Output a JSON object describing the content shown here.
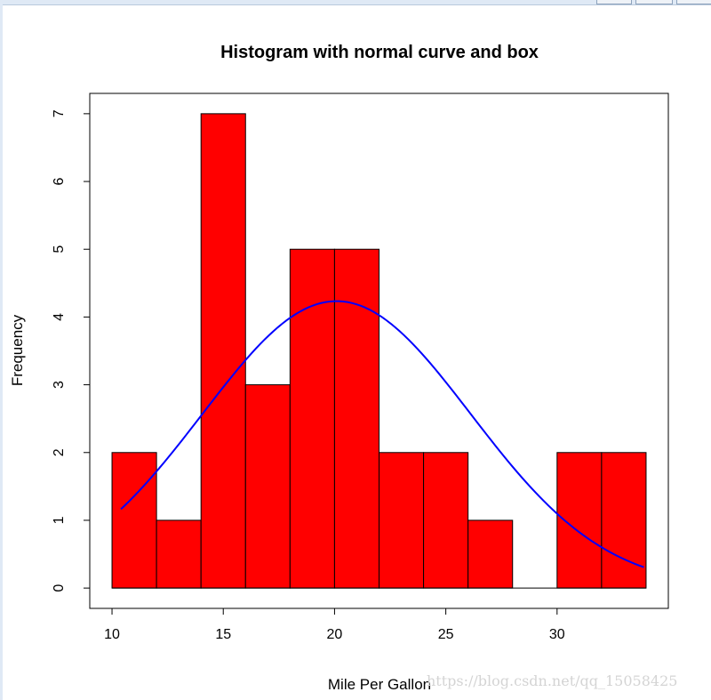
{
  "window": {
    "controls": [
      "minimize-button",
      "maximize-button",
      "close-button"
    ]
  },
  "chart_data": {
    "type": "bar",
    "title": "Histogram with normal curve and box",
    "xlabel": "Mile Per Gallon",
    "ylabel": "Frequency",
    "bins": [
      [
        10,
        12
      ],
      [
        12,
        14
      ],
      [
        14,
        16
      ],
      [
        16,
        18
      ],
      [
        18,
        20
      ],
      [
        20,
        22
      ],
      [
        22,
        24
      ],
      [
        24,
        26
      ],
      [
        26,
        28
      ],
      [
        28,
        30
      ],
      [
        30,
        32
      ],
      [
        32,
        34
      ]
    ],
    "values": [
      2,
      1,
      7,
      3,
      5,
      5,
      2,
      2,
      1,
      0,
      2,
      2
    ],
    "bar_color": "#ff0000",
    "curve": {
      "type": "normal",
      "mean": 20.09,
      "sd": 6.03,
      "color": "#0000ff",
      "x_range": [
        10.4,
        33.9
      ]
    },
    "xlim": [
      9,
      35
    ],
    "ylim": [
      -0.3,
      7.3
    ],
    "xticks": [
      "10",
      "15",
      "20",
      "25",
      "30"
    ],
    "yticks": [
      "0",
      "1",
      "2",
      "3",
      "4",
      "5",
      "6",
      "7"
    ],
    "grid": false
  },
  "watermark": "https://blog.csdn.net/qq_15058425"
}
